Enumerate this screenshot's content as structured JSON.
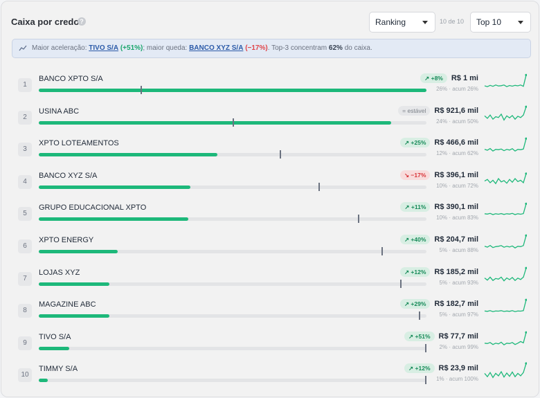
{
  "header": {
    "title": "Caixa por credor",
    "info_icon": "info-icon",
    "sort_select": "Ranking",
    "count": "10 de 10",
    "top_select": "Top 10"
  },
  "banner": {
    "icon": "trending-icon",
    "prefix": "Maior aceleração:",
    "accel_name": "TIVO S/A",
    "accel_delta": "(+51%)",
    "middle": "; maior queda:",
    "drop_name": "BANCO XYZ S/A",
    "drop_delta": "(−17%)",
    "suffix1": ". Top-3 concentram",
    "concentration": "62%",
    "suffix2": "do caixa."
  },
  "colors": {
    "bar": "#1db87a",
    "up": "#168a58",
    "down": "#d8353a"
  },
  "rows": [
    {
      "rank": "1",
      "name": "BANCO XPTO S/A",
      "badge": "↗ +8%",
      "trend": "up",
      "value": "R$ 1 mi",
      "share": "26% · acum 26%",
      "bar": 1.0,
      "marker": 0.263,
      "spark": [
        0.75,
        0.8,
        0.72,
        0.78,
        0.7,
        0.76,
        0.74,
        0.7,
        0.8,
        0.73,
        0.77,
        0.72,
        0.75,
        0.7,
        0.78,
        0.1
      ]
    },
    {
      "rank": "2",
      "name": "USINA ABC",
      "badge": "= estável",
      "trend": "flat",
      "value": "R$ 921,6 mil",
      "share": "24% · acum 50%",
      "bar": 0.909,
      "marker": 0.5,
      "spark": [
        0.6,
        0.75,
        0.55,
        0.8,
        0.65,
        0.7,
        0.5,
        0.85,
        0.6,
        0.72,
        0.58,
        0.8,
        0.62,
        0.7,
        0.55,
        0.05
      ]
    },
    {
      "rank": "3",
      "name": "XPTO LOTEAMENTOS",
      "badge": "↗ +25%",
      "trend": "up",
      "value": "R$ 466,6 mil",
      "share": "12% · acum 62%",
      "bar": 0.461,
      "marker": 0.621,
      "spark": [
        0.7,
        0.75,
        0.65,
        0.8,
        0.7,
        0.72,
        0.68,
        0.78,
        0.7,
        0.74,
        0.66,
        0.8,
        0.7,
        0.72,
        0.68,
        0.05
      ]
    },
    {
      "rank": "4",
      "name": "BANCO XYZ S/A",
      "badge": "↘ −17%",
      "trend": "down",
      "value": "R$ 396,1 mil",
      "share": "10% · acum 72%",
      "bar": 0.391,
      "marker": 0.722,
      "spark": [
        0.65,
        0.55,
        0.75,
        0.6,
        0.8,
        0.5,
        0.7,
        0.62,
        0.78,
        0.55,
        0.72,
        0.5,
        0.68,
        0.6,
        0.75,
        0.2
      ]
    },
    {
      "rank": "5",
      "name": "GRUPO EDUCACIONAL XPTO",
      "badge": "↗ +11%",
      "trend": "up",
      "value": "R$ 390,1 mil",
      "share": "10% · acum 83%",
      "bar": 0.386,
      "marker": 0.823,
      "spark": [
        0.7,
        0.72,
        0.68,
        0.75,
        0.7,
        0.73,
        0.69,
        0.74,
        0.7,
        0.72,
        0.68,
        0.75,
        0.7,
        0.73,
        0.69,
        0.1
      ]
    },
    {
      "rank": "6",
      "name": "XPTO ENERGY",
      "badge": "↗ +40%",
      "trend": "up",
      "value": "R$ 204,7 mil",
      "share": "5% · acum 88%",
      "bar": 0.204,
      "marker": 0.884,
      "spark": [
        0.7,
        0.75,
        0.65,
        0.78,
        0.72,
        0.7,
        0.66,
        0.76,
        0.7,
        0.74,
        0.68,
        0.8,
        0.7,
        0.72,
        0.66,
        0.05
      ]
    },
    {
      "rank": "7",
      "name": "LOJAS XYZ",
      "badge": "↗ +12%",
      "trend": "up",
      "value": "R$ 185,2 mil",
      "share": "5% · acum 93%",
      "bar": 0.183,
      "marker": 0.932,
      "spark": [
        0.65,
        0.78,
        0.6,
        0.8,
        0.68,
        0.72,
        0.6,
        0.82,
        0.65,
        0.75,
        0.62,
        0.8,
        0.66,
        0.74,
        0.6,
        0.05
      ]
    },
    {
      "rank": "8",
      "name": "MAGAZINE ABC",
      "badge": "↗ +29%",
      "trend": "up",
      "value": "R$ 182,7 mil",
      "share": "5% · acum 97%",
      "bar": 0.182,
      "marker": 0.98,
      "spark": [
        0.72,
        0.74,
        0.7,
        0.76,
        0.72,
        0.73,
        0.7,
        0.75,
        0.72,
        0.74,
        0.7,
        0.76,
        0.72,
        0.73,
        0.7,
        0.05
      ]
    },
    {
      "rank": "9",
      "name": "TIVO S/A",
      "badge": "↗ +51%",
      "trend": "up",
      "value": "R$ 77,7 mil",
      "share": "2% · acum 99%",
      "bar": 0.079,
      "marker": 0.998,
      "spark": [
        0.7,
        0.72,
        0.66,
        0.78,
        0.7,
        0.74,
        0.64,
        0.8,
        0.7,
        0.72,
        0.66,
        0.78,
        0.7,
        0.6,
        0.68,
        0.05
      ]
    },
    {
      "rank": "10",
      "name": "TIMMY S/A",
      "badge": "↗ +12%",
      "trend": "up",
      "value": "R$ 23,9 mil",
      "share": "1% · acum 100%",
      "bar": 0.024,
      "marker": 1.0,
      "spark": [
        0.6,
        0.8,
        0.55,
        0.85,
        0.6,
        0.75,
        0.5,
        0.82,
        0.58,
        0.78,
        0.52,
        0.8,
        0.6,
        0.75,
        0.55,
        0.0
      ]
    }
  ]
}
